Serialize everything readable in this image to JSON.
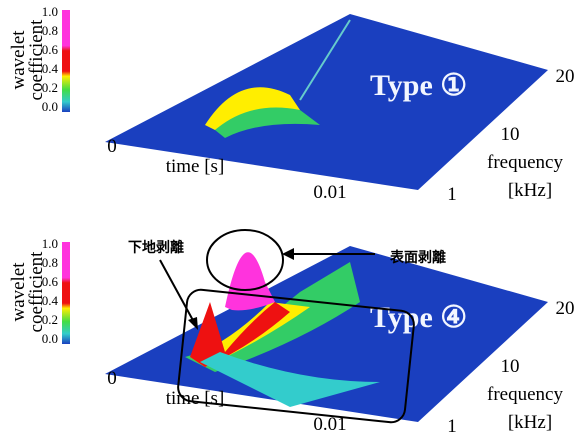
{
  "panels": [
    {
      "label": "Type ①",
      "y_axis_label": [
        "wavelet",
        "coefficient"
      ],
      "color_scale_ticks": [
        "1.0",
        "0.8",
        "0.6",
        "0.4",
        "0.2",
        "0.0"
      ],
      "time_axis": {
        "label": "time [s]",
        "ticks": [
          "0",
          "0.01"
        ]
      },
      "frequency_axis": {
        "label": [
          "frequency",
          "[kHz]"
        ],
        "ticks": [
          "1",
          "10",
          "20"
        ]
      }
    },
    {
      "label": "Type ④",
      "y_axis_label": [
        "wavelet",
        "coefficient"
      ],
      "color_scale_ticks": [
        "1.0",
        "0.8",
        "0.6",
        "0.4",
        "0.2",
        "0.0"
      ],
      "time_axis": {
        "label": "time [s]",
        "ticks": [
          "0",
          "0.01"
        ]
      },
      "frequency_axis": {
        "label": [
          "frequency",
          "[kHz]"
        ],
        "ticks": [
          "1",
          "10",
          "20"
        ]
      },
      "annotations": [
        "下地剥離",
        "表面剥離"
      ]
    }
  ]
}
